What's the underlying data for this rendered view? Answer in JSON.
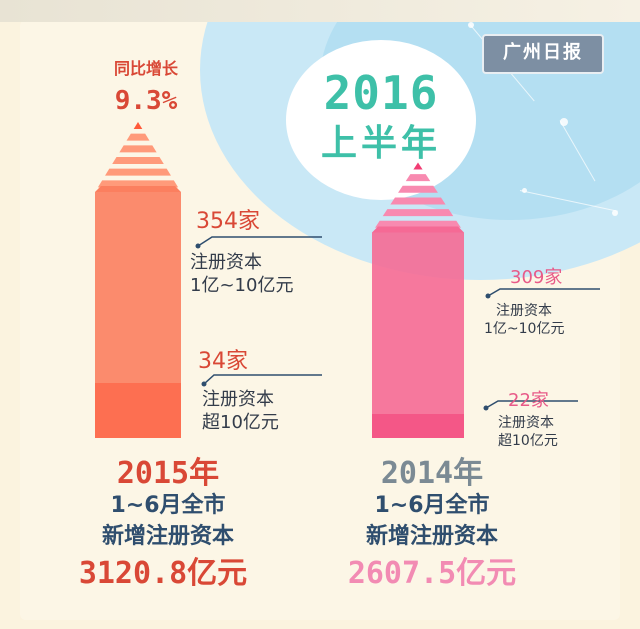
{
  "source_badge": "广州日报",
  "title": {
    "year": "2016",
    "subtitle": "上半年"
  },
  "yoy": {
    "label": "同比增长",
    "value": "9.3%"
  },
  "colors": {
    "y2015": "#fb7f5f",
    "y2015_dark": "#ff5a3a",
    "y2014": "#f56a95",
    "y2014_dark": "#f23d74",
    "accent": "#3ec0a8",
    "red_text": "#d94836",
    "pink_text": "#e85a88"
  },
  "chart_data": {
    "type": "bar",
    "categories": [
      "2015年",
      "2014年"
    ],
    "series": [
      {
        "name": "1~6月全市新增注册资本",
        "unit": "亿元",
        "values": [
          3120.8,
          2607.5
        ]
      },
      {
        "name": "注册资本1亿~10亿元",
        "unit": "家",
        "values": [
          354,
          309
        ]
      },
      {
        "name": "注册资本超10亿元",
        "unit": "家",
        "values": [
          34,
          22
        ]
      }
    ],
    "yoy_growth_pct": 9.3
  },
  "bars": [
    {
      "year": "2015年",
      "line1": "1~6月全市",
      "line2": "新增注册资本",
      "total": "3120.8亿元",
      "mid_count": "354家",
      "mid_desc1": "注册资本",
      "mid_desc2": "1亿~10亿元",
      "top_count": "34家",
      "top_desc1": "注册资本",
      "top_desc2": "超10亿元"
    },
    {
      "year": "2014年",
      "line1": "1~6月全市",
      "line2": "新增注册资本",
      "total": "2607.5亿元",
      "mid_count": "309家",
      "mid_desc1": "注册资本",
      "mid_desc2": "1亿~10亿元",
      "top_count": "22家",
      "top_desc1": "注册资本",
      "top_desc2": "超10亿元"
    }
  ]
}
